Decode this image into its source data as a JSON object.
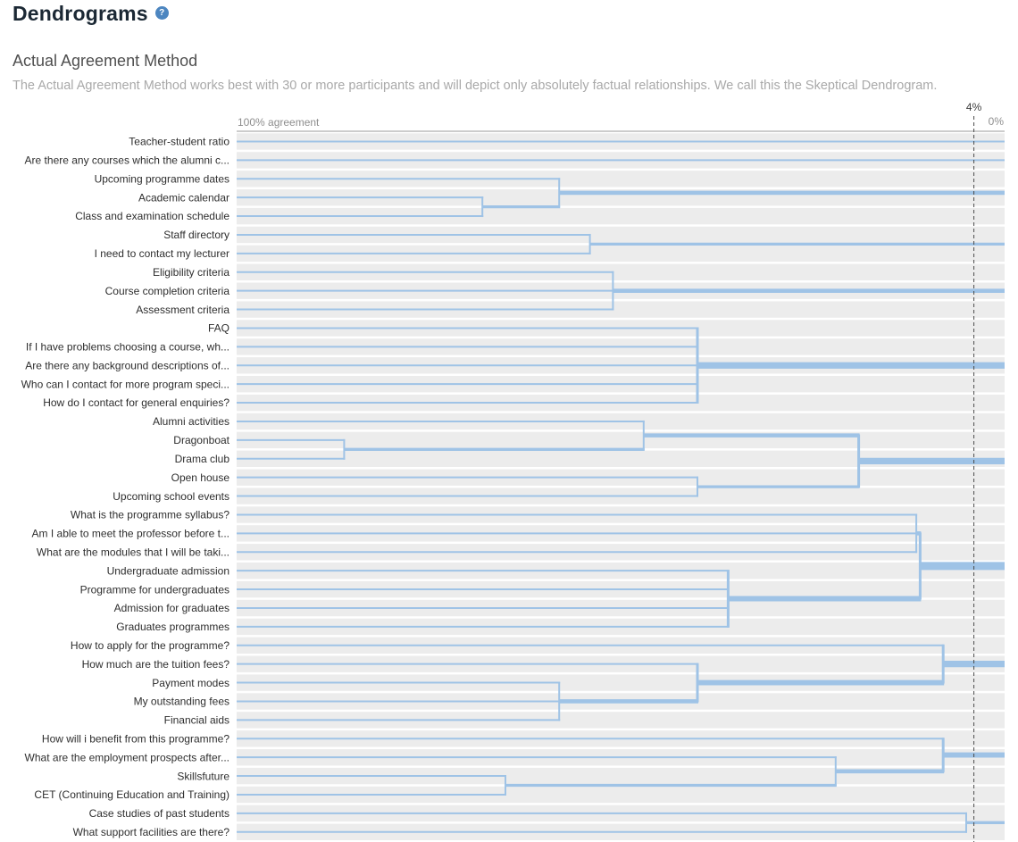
{
  "header": {
    "title": "Dendrograms",
    "help_icon": "?"
  },
  "section": {
    "title": "Actual Agreement Method",
    "description": "The Actual Agreement Method works best with 30 or more participants and will depict only absolutely factual relationships. We call this the Skeptical Dendrogram."
  },
  "chart": {
    "colors": {
      "link": "#9fc3e6",
      "band": "#ececec",
      "axis": "#9a9a9a",
      "marker": "#4a4a4a",
      "label": "#2e2e2e"
    }
  },
  "chart_data": {
    "type": "dendrogram",
    "orientation": "horizontal",
    "x_axis": {
      "label_left": "100% agreement",
      "label_right": "0%",
      "min_pct": 0,
      "max_pct": 100,
      "marker_pct": 4,
      "marker_label": "4%"
    },
    "leaves": [
      "Teacher-student ratio",
      "Are there any courses which the alumni c...",
      "Upcoming programme dates",
      "Academic calendar",
      "Class and examination schedule",
      "Staff directory",
      "I need to contact my lecturer",
      "Eligibility criteria",
      "Course completion criteria",
      "Assessment criteria",
      "FAQ",
      "If I have problems choosing a course, wh...",
      "Are there any background descriptions of...",
      "Who can I contact for more program speci...",
      "How do I contact for general enquiries?",
      "Alumni activities",
      "Dragonboat",
      "Drama club",
      "Open house",
      "Upcoming school events",
      "What is the programme syllabus?",
      "Am I able to meet the professor before t...",
      "What are the modules that I will be taki...",
      "Undergraduate admission",
      "Programme for undergraduates",
      "Admission for graduates",
      "Graduates programmes",
      "How to apply for the programme?",
      "How much are the tuition fees?",
      "Payment modes",
      "My outstanding fees",
      "Financial aids",
      "How will i benefit from this programme?",
      "What are the employment prospects after...",
      "Skillsfuture",
      "CET (Continuing Education and Training)",
      "Case studies of past students",
      "What support facilities are there?"
    ],
    "merges": [
      {
        "id": "c1",
        "children": [
          3,
          4
        ],
        "agreement_pct": 68
      },
      {
        "id": "c2",
        "children": [
          2,
          "c1"
        ],
        "agreement_pct": 58
      },
      {
        "id": "c3",
        "children": [
          5,
          6
        ],
        "agreement_pct": 54
      },
      {
        "id": "c4",
        "children": [
          7,
          8,
          9
        ],
        "agreement_pct": 51
      },
      {
        "id": "c5",
        "children": [
          10,
          11,
          12,
          13,
          14
        ],
        "agreement_pct": 40
      },
      {
        "id": "c6",
        "children": [
          16,
          17
        ],
        "agreement_pct": 86
      },
      {
        "id": "c7",
        "children": [
          15,
          "c6"
        ],
        "agreement_pct": 47
      },
      {
        "id": "c8",
        "children": [
          18,
          19
        ],
        "agreement_pct": 40
      },
      {
        "id": "c9",
        "children": [
          "c7",
          "c8"
        ],
        "agreement_pct": 19
      },
      {
        "id": "c10",
        "children": [
          23,
          24,
          25,
          26
        ],
        "agreement_pct": 36
      },
      {
        "id": "c11",
        "children": [
          20,
          21,
          22
        ],
        "agreement_pct": 11.5
      },
      {
        "id": "c12",
        "children": [
          "c11",
          "c10"
        ],
        "agreement_pct": 11
      },
      {
        "id": "c13",
        "children": [
          29,
          30,
          31
        ],
        "agreement_pct": 58
      },
      {
        "id": "c14",
        "children": [
          28,
          "c13"
        ],
        "agreement_pct": 40
      },
      {
        "id": "c15",
        "children": [
          27,
          "c14"
        ],
        "agreement_pct": 8
      },
      {
        "id": "c16",
        "children": [
          34,
          35
        ],
        "agreement_pct": 65
      },
      {
        "id": "c17",
        "children": [
          33,
          "c16"
        ],
        "agreement_pct": 22
      },
      {
        "id": "c18",
        "children": [
          32,
          "c17"
        ],
        "agreement_pct": 8
      },
      {
        "id": "c19",
        "children": [
          36,
          37
        ],
        "agreement_pct": 5
      }
    ]
  }
}
